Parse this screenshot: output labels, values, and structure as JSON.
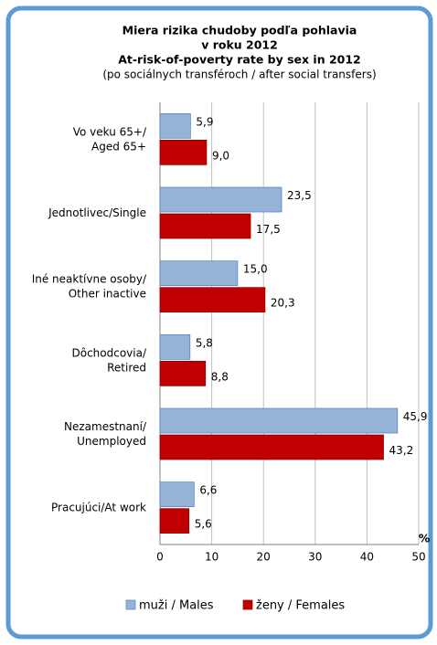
{
  "chart_data": {
    "type": "hbar",
    "title": [
      "Miera  rizika chudoby podľa pohlavia",
      "v roku 2012",
      "At-risk-of-poverty rate by sex in 2012"
    ],
    "subtitle": "(po sociálnych transféroch / after social transfers)",
    "x_axis_label": "%",
    "categories": [
      [
        "Vo veku 65+/",
        "Aged 65+"
      ],
      [
        "Jednotlivec/Single"
      ],
      [
        "Iné neaktívne osoby/",
        "Other inactive"
      ],
      [
        "Dôchodcovia/",
        "Retired"
      ],
      [
        "Nezamestnaní/",
        "Unemployed"
      ],
      [
        "Pracujúci/At work"
      ]
    ],
    "series": [
      {
        "name": "muži / Males",
        "color": "#95b3d7",
        "values": [
          5.9,
          23.5,
          15.0,
          5.8,
          45.9,
          6.6
        ],
        "value_labels": [
          "5,9",
          "23,5",
          "15,0",
          "5,8",
          "45,9",
          "6,6"
        ]
      },
      {
        "name": "ženy / Females",
        "color": "#c00000",
        "values": [
          9.0,
          17.5,
          20.3,
          8.8,
          43.2,
          5.6
        ],
        "value_labels": [
          "9,0",
          "17,5",
          "20,3",
          "8,8",
          "43,2",
          "5,6"
        ]
      }
    ],
    "xlim": [
      0,
      50
    ],
    "xticks": [
      0,
      10,
      20,
      30,
      40,
      50
    ],
    "grid": true
  }
}
